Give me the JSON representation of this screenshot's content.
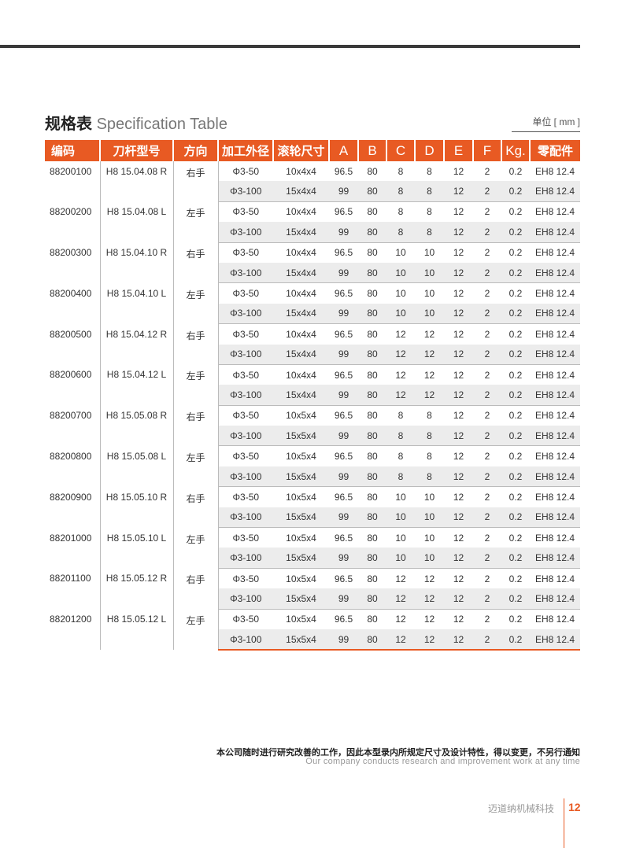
{
  "title_cn": "规格表",
  "title_en": "Specification Table",
  "unit": "单位 [ mm ]",
  "headers": [
    "编码",
    "刀杆型号",
    "方向",
    "加工外径",
    "滚轮尺寸",
    "A",
    "B",
    "C",
    "D",
    "E",
    "F",
    "Kg.",
    "零配件"
  ],
  "rows": [
    {
      "code": "88200100",
      "model": "H8 15.04.08 R",
      "dir": "右手",
      "sub": [
        [
          "Φ3-50",
          "10x4x4",
          "96.5",
          "80",
          "8",
          "8",
          "12",
          "2",
          "0.2",
          "EH8 12.4"
        ],
        [
          "Φ3-100",
          "15x4x4",
          "99",
          "80",
          "8",
          "8",
          "12",
          "2",
          "0.2",
          "EH8 12.4"
        ]
      ]
    },
    {
      "code": "88200200",
      "model": "H8 15.04.08 L",
      "dir": "左手",
      "sub": [
        [
          "Φ3-50",
          "10x4x4",
          "96.5",
          "80",
          "8",
          "8",
          "12",
          "2",
          "0.2",
          "EH8 12.4"
        ],
        [
          "Φ3-100",
          "15x4x4",
          "99",
          "80",
          "8",
          "8",
          "12",
          "2",
          "0.2",
          "EH8 12.4"
        ]
      ]
    },
    {
      "code": "88200300",
      "model": "H8 15.04.10 R",
      "dir": "右手",
      "sub": [
        [
          "Φ3-50",
          "10x4x4",
          "96.5",
          "80",
          "10",
          "10",
          "12",
          "2",
          "0.2",
          "EH8 12.4"
        ],
        [
          "Φ3-100",
          "15x4x4",
          "99",
          "80",
          "10",
          "10",
          "12",
          "2",
          "0.2",
          "EH8 12.4"
        ]
      ]
    },
    {
      "code": "88200400",
      "model": "H8 15.04.10 L",
      "dir": "左手",
      "sub": [
        [
          "Φ3-50",
          "10x4x4",
          "96.5",
          "80",
          "10",
          "10",
          "12",
          "2",
          "0.2",
          "EH8 12.4"
        ],
        [
          "Φ3-100",
          "15x4x4",
          "99",
          "80",
          "10",
          "10",
          "12",
          "2",
          "0.2",
          "EH8 12.4"
        ]
      ]
    },
    {
      "code": "88200500",
      "model": "H8 15.04.12 R",
      "dir": "右手",
      "sub": [
        [
          "Φ3-50",
          "10x4x4",
          "96.5",
          "80",
          "12",
          "12",
          "12",
          "2",
          "0.2",
          "EH8 12.4"
        ],
        [
          "Φ3-100",
          "15x4x4",
          "99",
          "80",
          "12",
          "12",
          "12",
          "2",
          "0.2",
          "EH8 12.4"
        ]
      ]
    },
    {
      "code": "88200600",
      "model": "H8 15.04.12 L",
      "dir": "左手",
      "sub": [
        [
          "Φ3-50",
          "10x4x4",
          "96.5",
          "80",
          "12",
          "12",
          "12",
          "2",
          "0.2",
          "EH8 12.4"
        ],
        [
          "Φ3-100",
          "15x4x4",
          "99",
          "80",
          "12",
          "12",
          "12",
          "2",
          "0.2",
          "EH8 12.4"
        ]
      ]
    },
    {
      "code": "88200700",
      "model": "H8 15.05.08 R",
      "dir": "右手",
      "sub": [
        [
          "Φ3-50",
          "10x5x4",
          "96.5",
          "80",
          "8",
          "8",
          "12",
          "2",
          "0.2",
          "EH8 12.4"
        ],
        [
          "Φ3-100",
          "15x5x4",
          "99",
          "80",
          "8",
          "8",
          "12",
          "2",
          "0.2",
          "EH8 12.4"
        ]
      ]
    },
    {
      "code": "88200800",
      "model": "H8 15.05.08 L",
      "dir": "左手",
      "sub": [
        [
          "Φ3-50",
          "10x5x4",
          "96.5",
          "80",
          "8",
          "8",
          "12",
          "2",
          "0.2",
          "EH8 12.4"
        ],
        [
          "Φ3-100",
          "15x5x4",
          "99",
          "80",
          "8",
          "8",
          "12",
          "2",
          "0.2",
          "EH8 12.4"
        ]
      ]
    },
    {
      "code": "88200900",
      "model": "H8 15.05.10 R",
      "dir": "右手",
      "sub": [
        [
          "Φ3-50",
          "10x5x4",
          "96.5",
          "80",
          "10",
          "10",
          "12",
          "2",
          "0.2",
          "EH8 12.4"
        ],
        [
          "Φ3-100",
          "15x5x4",
          "99",
          "80",
          "10",
          "10",
          "12",
          "2",
          "0.2",
          "EH8 12.4"
        ]
      ]
    },
    {
      "code": "88201000",
      "model": "H8 15.05.10 L",
      "dir": "左手",
      "sub": [
        [
          "Φ3-50",
          "10x5x4",
          "96.5",
          "80",
          "10",
          "10",
          "12",
          "2",
          "0.2",
          "EH8 12.4"
        ],
        [
          "Φ3-100",
          "15x5x4",
          "99",
          "80",
          "10",
          "10",
          "12",
          "2",
          "0.2",
          "EH8 12.4"
        ]
      ]
    },
    {
      "code": "88201100",
      "model": "H8 15.05.12 R",
      "dir": "右手",
      "sub": [
        [
          "Φ3-50",
          "10x5x4",
          "96.5",
          "80",
          "12",
          "12",
          "12",
          "2",
          "0.2",
          "EH8 12.4"
        ],
        [
          "Φ3-100",
          "15x5x4",
          "99",
          "80",
          "12",
          "12",
          "12",
          "2",
          "0.2",
          "EH8 12.4"
        ]
      ]
    },
    {
      "code": "88201200",
      "model": "H8 15.05.12 L",
      "dir": "左手",
      "sub": [
        [
          "Φ3-50",
          "10x5x4",
          "96.5",
          "80",
          "12",
          "12",
          "12",
          "2",
          "0.2",
          "EH8 12.4"
        ],
        [
          "Φ3-100",
          "15x5x4",
          "99",
          "80",
          "12",
          "12",
          "12",
          "2",
          "0.2",
          "EH8 12.4"
        ]
      ]
    }
  ],
  "footer_cn": "本公司随时进行研究改善的工作，因此本型录内所规定尺寸及设计特性，得以变更，不另行通知",
  "footer_en": "Our company conducts research and improvement work at any time",
  "brand": "迈道纳机械科技",
  "page": "12",
  "accent": "#e85a23"
}
